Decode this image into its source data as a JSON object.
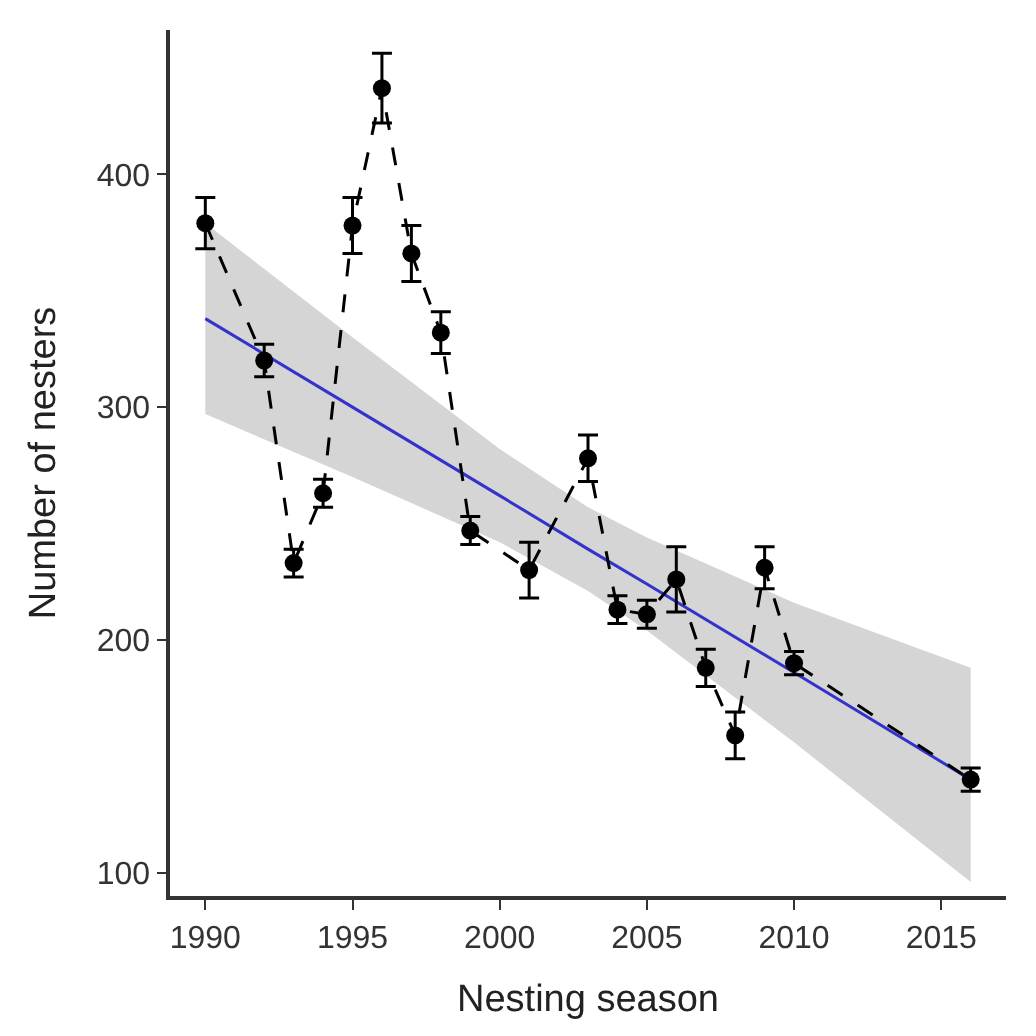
{
  "chart_data": {
    "type": "line",
    "xlabel": "Nesting season",
    "ylabel": "Number of nesters",
    "xlim": [
      1988.8,
      2017.2
    ],
    "ylim": [
      90,
      462
    ],
    "xticks": [
      1990,
      1995,
      2000,
      2005,
      2010,
      2015
    ],
    "yticks": [
      100,
      200,
      300,
      400
    ],
    "series": [
      {
        "color": "#3333cc",
        "x": [
          1990,
          1995,
          2000,
          2003,
          2005,
          2010,
          2016
        ],
        "values": [
          338,
          300,
          262,
          239,
          224,
          186,
          140
        ],
        "lower": [
          297,
          270,
          242,
          221,
          204,
          156,
          96
        ],
        "upper": [
          379,
          330,
          282,
          257,
          244,
          216,
          188
        ],
        "marker": "none",
        "line_style": "solid"
      },
      {
        "color": "#000000",
        "x": [
          1990,
          1992,
          1993,
          1994,
          1995,
          1996,
          1997,
          1998,
          1999,
          2001,
          2003,
          2004,
          2005,
          2006,
          2007,
          2008,
          2009,
          2010,
          2016
        ],
        "values": [
          379,
          320,
          233,
          263,
          378,
          437,
          366,
          332,
          247,
          230,
          278,
          213,
          211,
          226,
          188,
          159,
          231,
          190,
          140
        ],
        "errors": [
          11,
          7,
          6,
          6,
          12,
          15,
          12,
          9,
          6,
          12,
          10,
          6,
          6,
          14,
          8,
          10,
          9,
          5,
          5
        ],
        "marker": "circle",
        "line_style": "dashed"
      }
    ]
  }
}
